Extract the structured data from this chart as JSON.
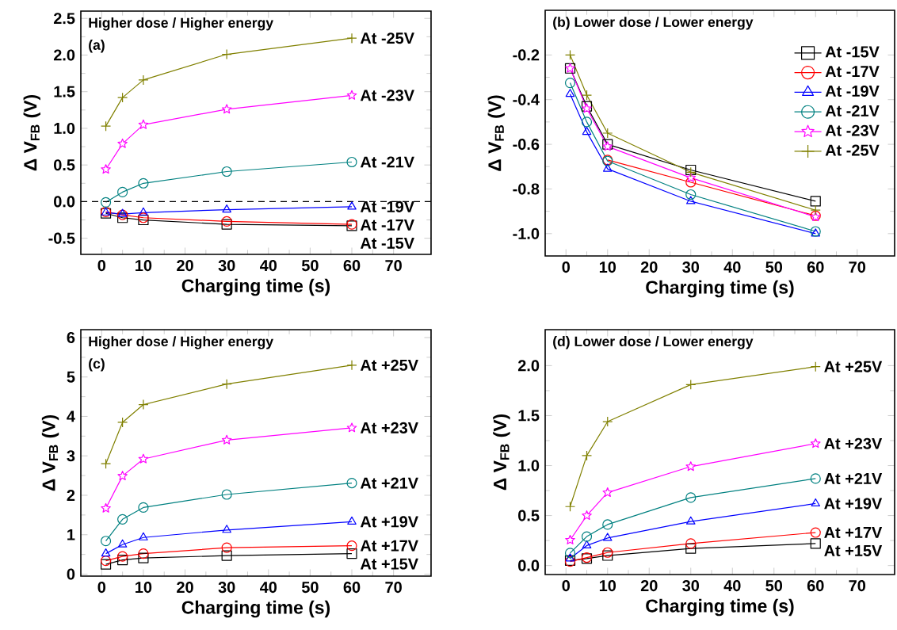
{
  "chart_data": [
    {
      "type": "line",
      "title": "Higher dose / Higher energy",
      "annotations": [
        "(a)"
      ],
      "xlabel": "Charging time (s)",
      "ylabel": "Δ V$_{FB}$ (V)",
      "x": [
        1,
        5,
        10,
        30,
        60
      ],
      "xlim": [
        -5,
        79
      ],
      "xticks": [
        0,
        10,
        20,
        30,
        40,
        50,
        60,
        70
      ],
      "ylim": [
        -0.72,
        2.6
      ],
      "yticks": [
        -0.5,
        {
          "value": 0,
          "label": "0.0"
        },
        0.5,
        {
          "value": 1,
          "label": "1.0"
        },
        1.5,
        {
          "value": 2,
          "label": "2.0"
        },
        2.5
      ],
      "legend": false,
      "ref_lines": [
        {
          "axis": "y",
          "value": 0,
          "line_style": "dashed",
          "color": "#000000"
        }
      ],
      "series": [
        {
          "name": "At -15V",
          "color": "#000000",
          "marker": "square",
          "values": [
            -0.16,
            -0.22,
            -0.25,
            -0.31,
            -0.33
          ]
        },
        {
          "name": "At -17V",
          "color": "#ff0000",
          "marker": "circle",
          "values": [
            -0.14,
            -0.18,
            -0.22,
            -0.27,
            -0.31
          ]
        },
        {
          "name": "At -19V",
          "color": "#0000ff",
          "marker": "triangle",
          "values": [
            -0.15,
            -0.17,
            -0.15,
            -0.11,
            -0.07
          ]
        },
        {
          "name": "At -21V",
          "color": "#008080",
          "marker": "circle",
          "values": [
            -0.01,
            0.13,
            0.25,
            0.41,
            0.54
          ]
        },
        {
          "name": "At -23V",
          "color": "#ff00ff",
          "marker": "star",
          "values": [
            0.44,
            0.79,
            1.05,
            1.26,
            1.45
          ]
        },
        {
          "name": "At -25V",
          "color": "#808000",
          "marker": "cross",
          "values": [
            1.03,
            1.42,
            1.66,
            2.01,
            2.23
          ]
        }
      ]
    },
    {
      "type": "line",
      "title": "(b) Lower dose / Lower energy",
      "xlabel": "Charging time (s)",
      "ylabel": "Δ V$_{FB}$ (V)",
      "x": [
        1,
        5,
        10,
        30,
        60
      ],
      "xlim": [
        -5,
        79
      ],
      "xticks": [
        0,
        10,
        20,
        30,
        40,
        50,
        60,
        70
      ],
      "ylim": [
        -1.1,
        0
      ],
      "yticks": [
        {
          "value": -1,
          "label": "-1.0"
        },
        -0.8,
        -0.6,
        -0.4,
        -0.2
      ],
      "legend": "top right",
      "series": [
        {
          "name": "At -15V",
          "color": "#000000",
          "marker": "square",
          "values": [
            -0.26,
            -0.43,
            -0.6,
            -0.715,
            -0.855
          ]
        },
        {
          "name": "At -17V",
          "color": "#ff0000",
          "marker": "circle",
          "values": [
            null,
            null,
            -0.67,
            -0.77,
            -0.92
          ]
        },
        {
          "name": "At -19V",
          "color": "#0000ff",
          "marker": "triangle",
          "values": [
            -0.375,
            -0.545,
            -0.71,
            -0.855,
            -1.0
          ]
        },
        {
          "name": "At -21V",
          "color": "#008080",
          "marker": "circle",
          "values": [
            -0.325,
            -0.5,
            -0.675,
            -0.825,
            -0.99
          ]
        },
        {
          "name": "At -23V",
          "color": "#ff00ff",
          "marker": "star",
          "values": [
            -0.26,
            -0.44,
            -0.61,
            -0.75,
            -0.925
          ]
        },
        {
          "name": "At -25V",
          "color": "#808000",
          "marker": "cross",
          "values": [
            -0.2,
            -0.38,
            -0.55,
            -0.725,
            -0.895
          ]
        }
      ]
    },
    {
      "type": "line",
      "title": "Higher dose / Higher energy",
      "annotations": [
        "(c)"
      ],
      "xlabel": "Charging time (s)",
      "ylabel": "Δ V$_{FB}$ (V)",
      "x": [
        1,
        5,
        10,
        30,
        60
      ],
      "xlim": [
        -5,
        79
      ],
      "xticks": [
        0,
        10,
        20,
        30,
        40,
        50,
        60,
        70
      ],
      "ylim": [
        -0.05,
        6.2
      ],
      "yticks": [
        0,
        1,
        2,
        3,
        4,
        5,
        6
      ],
      "legend": false,
      "series": [
        {
          "name": "At +15V",
          "color": "#000000",
          "marker": "square",
          "values": [
            0.25,
            0.36,
            0.41,
            0.47,
            0.52
          ]
        },
        {
          "name": "At +17V",
          "color": "#ff0000",
          "marker": "circle",
          "values": [
            0.34,
            0.45,
            0.52,
            0.67,
            0.72
          ]
        },
        {
          "name": "At +19V",
          "color": "#0000ff",
          "marker": "triangle",
          "values": [
            0.52,
            0.75,
            0.93,
            1.12,
            1.33
          ]
        },
        {
          "name": "At +21V",
          "color": "#008080",
          "marker": "circle",
          "values": [
            0.84,
            1.39,
            1.69,
            2.02,
            2.31
          ]
        },
        {
          "name": "At +23V",
          "color": "#ff00ff",
          "marker": "star",
          "values": [
            1.67,
            2.49,
            2.92,
            3.4,
            3.71
          ]
        },
        {
          "name": "At +25V",
          "color": "#808000",
          "marker": "cross",
          "values": [
            2.8,
            3.85,
            4.3,
            4.82,
            5.3
          ]
        }
      ]
    },
    {
      "type": "line",
      "title": "(d) Lower dose / Lower energy",
      "xlabel": "Charging time (s)",
      "ylabel": "Δ V$_{FB}$ (V)",
      "x": [
        1,
        5,
        10,
        30,
        60
      ],
      "xlim": [
        -5,
        79
      ],
      "xticks": [
        0,
        10,
        20,
        30,
        40,
        50,
        60,
        70
      ],
      "ylim": [
        -0.09,
        2.36
      ],
      "yticks": [
        {
          "value": 0,
          "label": "0.0"
        },
        0.5,
        {
          "value": 1,
          "label": "1.0"
        },
        1.5,
        {
          "value": 2,
          "label": "2.0"
        }
      ],
      "legend": false,
      "series": [
        {
          "name": "At +15V",
          "color": "#000000",
          "marker": "square",
          "values": [
            0.05,
            0.07,
            0.1,
            0.17,
            0.22
          ]
        },
        {
          "name": "At +17V",
          "color": "#ff0000",
          "marker": "circle",
          "values": [
            0.04,
            0.08,
            0.13,
            0.22,
            0.33
          ]
        },
        {
          "name": "At +19V",
          "color": "#0000ff",
          "marker": "triangle",
          "values": [
            0.07,
            0.2,
            0.275,
            0.44,
            0.62
          ]
        },
        {
          "name": "At +21V",
          "color": "#008080",
          "marker": "circle",
          "values": [
            0.125,
            0.29,
            0.41,
            0.68,
            0.87
          ]
        },
        {
          "name": "At +23V",
          "color": "#ff00ff",
          "marker": "star",
          "values": [
            0.255,
            0.5,
            0.73,
            0.99,
            1.22
          ]
        },
        {
          "name": "At +25V",
          "color": "#808000",
          "marker": "cross",
          "values": [
            0.59,
            1.1,
            1.44,
            1.81,
            1.99
          ]
        }
      ]
    }
  ]
}
